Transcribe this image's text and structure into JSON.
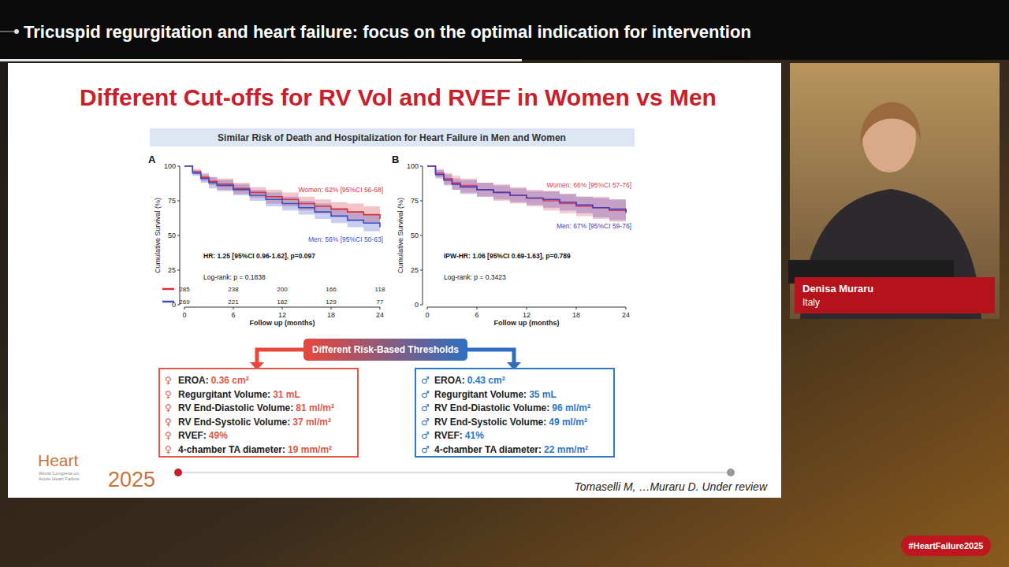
{
  "header": {
    "title": "Tricuspid regurgitation and heart failure: focus on the optimal indication for intervention"
  },
  "slide": {
    "title": "Different Cut-offs for RV Vol and RVEF in Women vs Men",
    "subtitle": "Similar Risk of Death and Hospitalization for Heart Failure in Men and Women",
    "thresholds_title": "Different Risk-Based Thresholds",
    "women": {
      "symbol": "♀",
      "color": "#e0574a",
      "items": [
        {
          "label": "EROA: ",
          "value": "0.36 cm²"
        },
        {
          "label": "Regurgitant Volume: ",
          "value": "31 mL"
        },
        {
          "label": "RV End-Diastolic Volume: ",
          "value": "81 ml/m²"
        },
        {
          "label": "RV End-Systolic Volume: ",
          "value": "37 ml/m²"
        },
        {
          "label": "RVEF: ",
          "value": "49%"
        },
        {
          "label": "4-chamber TA diameter: ",
          "value": "19 mm/m²"
        }
      ]
    },
    "men": {
      "symbol": "♂",
      "color": "#2f78c4",
      "items": [
        {
          "label": "EROA: ",
          "value": "0.43 cm²"
        },
        {
          "label": "Regurgitant Volume: ",
          "value": "35 mL"
        },
        {
          "label": "RV End-Diastolic Volume: ",
          "value": "96 ml/m²"
        },
        {
          "label": "RV End-Systolic Volume: ",
          "value": "49 ml/m²"
        },
        {
          "label": "RVEF: ",
          "value": "41%"
        },
        {
          "label": "4-chamber TA diameter: ",
          "value": "22 mm/m²"
        }
      ]
    },
    "citation": "Tomaselli M, …Muraru D. Under review"
  },
  "chart_data": [
    {
      "type": "line",
      "panel_label": "A",
      "x_label": "Follow up (months)",
      "y_label": "Cumulative Survival (%)",
      "line_style": "step",
      "x": [
        0,
        1,
        2,
        3,
        4,
        6,
        8,
        10,
        12,
        14,
        16,
        18,
        20,
        22,
        24
      ],
      "xlim": [
        0,
        24
      ],
      "xticks": [
        0,
        6,
        12,
        18,
        24
      ],
      "ylim": [
        0,
        100
      ],
      "yticks": [
        0,
        25,
        50,
        75,
        100
      ],
      "annotations": [
        "HR: 1.25 [95%CI 0.96-1.62], p=0.097",
        "Log-rank: p = 0.1838"
      ],
      "series": [
        {
          "name": "Women: 62% [95%CI 56-68]",
          "color": "#d9303a",
          "values": [
            100,
            96,
            92,
            89,
            87,
            84,
            81,
            78,
            76,
            73,
            71,
            69,
            67,
            65,
            62
          ],
          "ci_lower": [
            100,
            94,
            89,
            86,
            83,
            80,
            77,
            73,
            71,
            68,
            66,
            64,
            61,
            59,
            56
          ],
          "ci_upper": [
            100,
            98,
            95,
            92,
            91,
            88,
            85,
            83,
            81,
            78,
            76,
            74,
            73,
            71,
            68
          ],
          "at_risk": [
            285,
            238,
            200,
            166,
            118
          ]
        },
        {
          "name": "Men: 56% [95%CI 50-63]",
          "color": "#3b4fc4",
          "values": [
            100,
            95,
            91,
            88,
            86,
            83,
            79,
            76,
            73,
            70,
            67,
            64,
            61,
            59,
            56
          ],
          "ci_lower": [
            100,
            93,
            88,
            84,
            82,
            79,
            75,
            71,
            68,
            65,
            62,
            59,
            56,
            53,
            50
          ],
          "ci_upper": [
            100,
            97,
            94,
            92,
            90,
            87,
            83,
            81,
            78,
            75,
            73,
            70,
            67,
            65,
            63
          ],
          "at_risk": [
            269,
            221,
            182,
            129,
            77
          ]
        }
      ]
    },
    {
      "type": "line",
      "panel_label": "B",
      "x_label": "Follow up (months)",
      "y_label": "Cumulative Survival (%)",
      "line_style": "step",
      "x": [
        0,
        1,
        2,
        3,
        4,
        6,
        8,
        10,
        12,
        14,
        16,
        18,
        20,
        22,
        24
      ],
      "xlim": [
        0,
        24
      ],
      "xticks": [
        0,
        6,
        12,
        18,
        24
      ],
      "ylim": [
        0,
        100
      ],
      "yticks": [
        0,
        25,
        50,
        75,
        100
      ],
      "annotations": [
        "IPW-HR: 1.06 [95%CI 0.69-1.63], p=0.789",
        "Log-rank: p = 0.3423"
      ],
      "series": [
        {
          "name": "Women: 66% [95%CI 57-76]",
          "color": "#d9405e",
          "values": [
            100,
            95,
            91,
            88,
            86,
            83,
            81,
            79,
            77,
            75,
            73,
            71,
            70,
            68,
            66
          ],
          "ci_lower": [
            100,
            92,
            87,
            83,
            81,
            78,
            75,
            73,
            71,
            68,
            66,
            64,
            62,
            60,
            57
          ],
          "ci_upper": [
            100,
            98,
            95,
            93,
            91,
            88,
            87,
            85,
            83,
            82,
            80,
            78,
            78,
            76,
            76
          ]
        },
        {
          "name": "Men: 67% [95%CI 59-76]",
          "color": "#4a3bb0",
          "values": [
            100,
            94,
            90,
            87,
            85,
            83,
            81,
            79,
            77,
            76,
            74,
            72,
            70,
            69,
            67
          ],
          "ci_lower": [
            100,
            91,
            86,
            83,
            80,
            78,
            76,
            74,
            72,
            70,
            68,
            66,
            63,
            61,
            59
          ],
          "ci_upper": [
            100,
            97,
            94,
            91,
            90,
            88,
            86,
            84,
            82,
            82,
            80,
            78,
            77,
            76,
            76
          ]
        }
      ]
    }
  ],
  "speaker": {
    "name": "Denisa Muraru",
    "country": "Italy"
  },
  "event": {
    "logo_word": "Heart",
    "logo_sub": [
      "World Congress on",
      "Acute Heart Failure"
    ],
    "logo_year": "2025",
    "hashtag": "#HeartFailure2025"
  }
}
